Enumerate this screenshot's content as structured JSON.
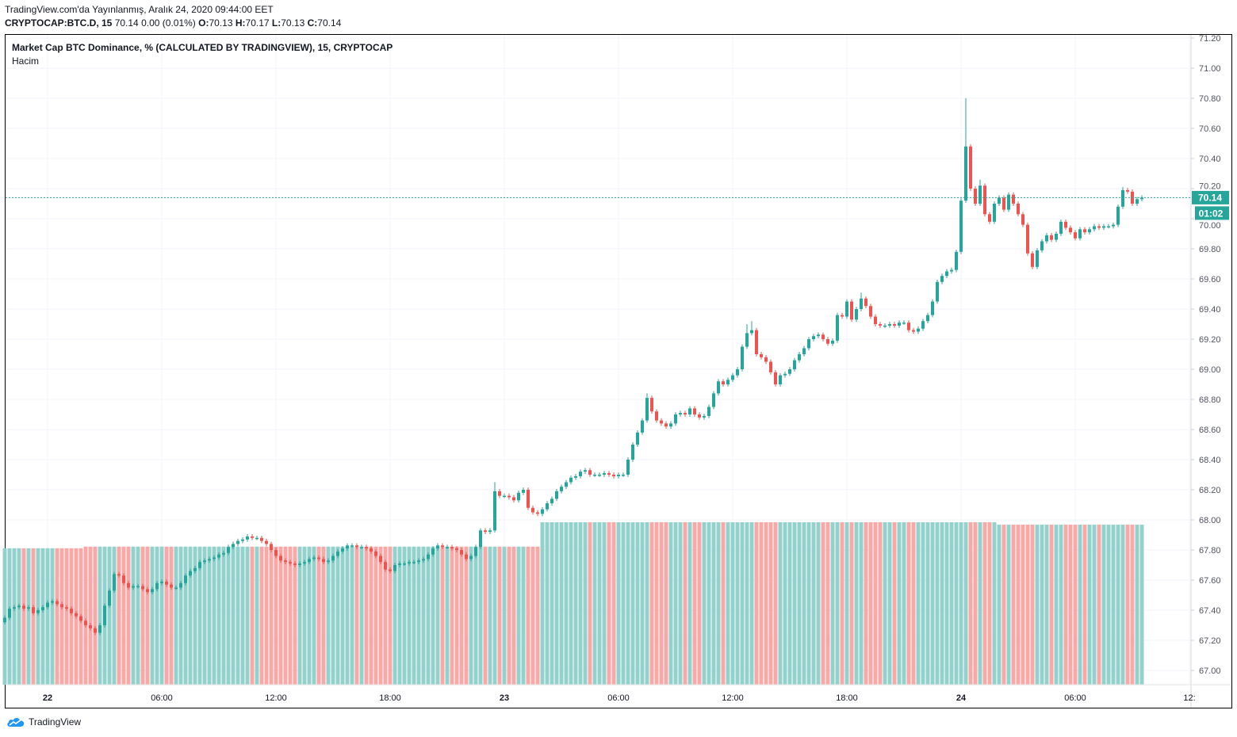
{
  "header": {
    "published": "TradingView.com'da Yayınlanmış, Aralık 24, 2020 09:44:00 EET",
    "symbol": "CRYPTOCAP:BTC.D, 15",
    "last": "70.14",
    "change": "0.00 (0.01%)",
    "o_label": "O:",
    "o": "70.13",
    "h_label": "H:",
    "h": "70.17",
    "l_label": "L:",
    "l": "70.13",
    "c_label": "C:",
    "c": "70.14"
  },
  "legend": {
    "title": "Market Cap BTC Dominance, % (CALCULATED BY TRADINGVIEW), 15, CRYPTOCAP",
    "volume": "Hacim"
  },
  "price_tag": {
    "value": "70.14",
    "countdown": "01:02"
  },
  "footer": {
    "brand": "TradingView",
    "logo_icon": "tradingview-cloud-icon"
  },
  "colors": {
    "up": "#26a69a",
    "down": "#ef5350",
    "up_volume": "#93d2cc",
    "down_volume": "#f7a9a7",
    "grid": "#f0f3fa"
  },
  "chart_data": {
    "type": "candlestick",
    "interval": "15",
    "ylim": [
      67.0,
      71.2
    ],
    "y_ticks": [
      "71.20",
      "71.00",
      "70.80",
      "70.60",
      "70.40",
      "70.20",
      "70.00",
      "69.80",
      "69.60",
      "69.40",
      "69.20",
      "69.00",
      "68.80",
      "68.60",
      "68.40",
      "68.20",
      "68.00",
      "67.80",
      "67.60",
      "67.40",
      "67.20",
      "67.00"
    ],
    "x_ticks": [
      {
        "label": "22",
        "bold": true
      },
      {
        "label": "06:00",
        "bold": false
      },
      {
        "label": "12:00",
        "bold": false
      },
      {
        "label": "18:00",
        "bold": false
      },
      {
        "label": "23",
        "bold": true
      },
      {
        "label": "06:00",
        "bold": false
      },
      {
        "label": "12:00",
        "bold": false
      },
      {
        "label": "18:00",
        "bold": false
      },
      {
        "label": "24",
        "bold": true
      },
      {
        "label": "06:00",
        "bold": false
      },
      {
        "label": "12:",
        "bold": false
      }
    ],
    "grid": true,
    "last_price": 70.14,
    "close": [
      67.35,
      67.41,
      67.42,
      67.43,
      67.41,
      67.42,
      67.38,
      67.4,
      67.42,
      67.45,
      67.46,
      67.44,
      67.42,
      67.41,
      67.38,
      67.36,
      67.33,
      67.3,
      67.28,
      67.25,
      67.3,
      67.43,
      67.53,
      67.64,
      67.63,
      67.58,
      67.55,
      67.56,
      67.56,
      67.54,
      67.52,
      67.54,
      67.58,
      67.59,
      67.57,
      67.55,
      67.55,
      67.58,
      67.63,
      67.66,
      67.68,
      67.72,
      67.73,
      67.74,
      67.75,
      67.77,
      67.78,
      67.82,
      67.84,
      67.86,
      67.87,
      67.89,
      67.88,
      67.88,
      67.86,
      67.84,
      67.8,
      67.76,
      67.73,
      67.72,
      67.71,
      67.7,
      67.71,
      67.72,
      67.74,
      67.75,
      67.74,
      67.72,
      67.73,
      67.76,
      67.79,
      67.81,
      67.83,
      67.83,
      67.82,
      67.82,
      67.81,
      67.79,
      67.76,
      67.72,
      67.67,
      67.66,
      67.7,
      67.71,
      67.71,
      67.72,
      67.72,
      67.73,
      67.74,
      67.77,
      67.81,
      67.83,
      67.82,
      67.82,
      67.81,
      67.8,
      67.77,
      67.74,
      67.76,
      67.82,
      67.93,
      67.92,
      67.93,
      68.19,
      68.16,
      68.16,
      68.15,
      68.13,
      68.18,
      68.2,
      68.08,
      68.05,
      68.04,
      68.07,
      68.11,
      68.14,
      68.19,
      68.22,
      68.25,
      68.28,
      68.29,
      68.32,
      68.33,
      68.3,
      68.3,
      68.3,
      68.31,
      68.3,
      68.29,
      68.3,
      68.3,
      68.4,
      68.5,
      68.58,
      68.66,
      68.81,
      68.72,
      68.66,
      68.64,
      68.62,
      68.64,
      68.7,
      68.71,
      68.7,
      68.74,
      68.7,
      68.68,
      68.69,
      68.75,
      68.84,
      68.92,
      68.9,
      68.93,
      68.96,
      69.0,
      69.15,
      69.24,
      69.26,
      69.1,
      69.08,
      69.05,
      68.98,
      68.9,
      68.96,
      68.97,
      69.0,
      69.06,
      69.1,
      69.14,
      69.2,
      69.22,
      69.23,
      69.2,
      69.17,
      69.19,
      69.36,
      69.35,
      69.45,
      69.33,
      69.4,
      69.47,
      69.42,
      69.35,
      69.3,
      69.29,
      69.29,
      69.3,
      69.29,
      69.31,
      69.31,
      69.26,
      69.25,
      69.27,
      69.32,
      69.36,
      69.45,
      69.58,
      69.62,
      69.65,
      69.66,
      69.78,
      70.12,
      70.48,
      70.2,
      70.1,
      70.22,
      70.03,
      69.98,
      70.1,
      70.14,
      70.06,
      70.16,
      70.1,
      70.03,
      69.96,
      69.77,
      69.68,
      69.79,
      69.85,
      69.89,
      69.86,
      69.9,
      69.98,
      69.94,
      69.91,
      69.87,
      69.93,
      69.91,
      69.93,
      69.95,
      69.94,
      69.95,
      69.95,
      69.96,
      70.08,
      70.19,
      70.18,
      70.1,
      70.13,
      70.14
    ],
    "notable_highs": {
      "103": 68.25,
      "135": 68.84,
      "156": 69.3,
      "157": 69.32,
      "180": 69.51,
      "202": 70.8,
      "205": 70.26,
      "235": 70.21
    },
    "volume_relative": [
      {
        "from": 0,
        "to": 16,
        "value": 0.84
      },
      {
        "from": 17,
        "to": 112,
        "value": 0.85
      },
      {
        "from": 113,
        "to": 208,
        "value": 1.0
      },
      {
        "from": 209,
        "to": 239,
        "value": 0.985
      }
    ]
  }
}
